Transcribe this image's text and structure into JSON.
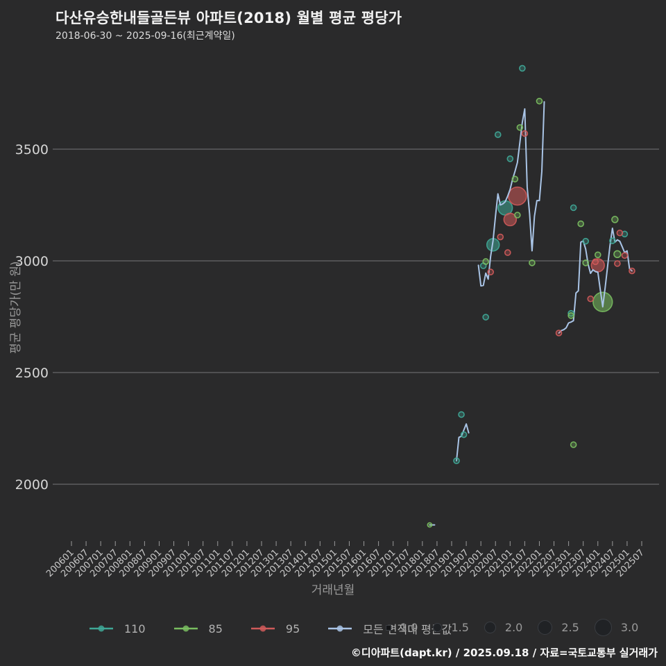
{
  "header": {
    "title": "다산유승한내들골든뷰 아파트(2018) 월별 평균 평당가",
    "subtitle": "2018-06-30 ~ 2025-09-16(최근계약일)"
  },
  "footer": {
    "attribution": "©디아파트(dapt.kr) / 2025.09.18 / 자료=국토교통부 실거래가"
  },
  "chart_data": {
    "type": "scatter+line",
    "xlabel": "거래년월",
    "ylabel": "평균 평당가(만 원)",
    "grid": true,
    "legend_position": "bottom",
    "y_ticks": [
      3500,
      3000,
      2500,
      2000
    ],
    "ylim": [
      1700,
      3950
    ],
    "x_ticks": [
      "200601",
      "200607",
      "200701",
      "200707",
      "200801",
      "200807",
      "200901",
      "200907",
      "201001",
      "201007",
      "201101",
      "201107",
      "201201",
      "201207",
      "201301",
      "201307",
      "201401",
      "201407",
      "201501",
      "201507",
      "201601",
      "201607",
      "201701",
      "201707",
      "201801",
      "201807",
      "201901",
      "201907",
      "202001",
      "202007",
      "202101",
      "202107",
      "202201",
      "202207",
      "202301",
      "202307",
      "202401",
      "202407",
      "202501",
      "202507"
    ],
    "avg_line": {
      "label": "모든 면적대 평균값",
      "color": "#a9c4e6",
      "segments": [
        [
          [
            "201804",
            1818
          ],
          [
            "201806",
            1818
          ]
        ],
        [
          [
            "201903",
            2105
          ],
          [
            "201904",
            2210
          ],
          [
            "201905",
            2215
          ],
          [
            "201907",
            2270
          ],
          [
            "201908",
            2230
          ]
        ],
        [
          [
            "201912",
            2980
          ],
          [
            "202001",
            2888
          ],
          [
            "202002",
            2890
          ],
          [
            "202003",
            2945
          ],
          [
            "202004",
            2918
          ],
          [
            "202005",
            3020
          ],
          [
            "202006",
            3090
          ],
          [
            "202007",
            3200
          ],
          [
            "202008",
            3300
          ],
          [
            "202009",
            3250
          ],
          [
            "202010",
            3255
          ],
          [
            "202011",
            3265
          ],
          [
            "202012",
            3290
          ],
          [
            "202101",
            3320
          ],
          [
            "202102",
            3365
          ],
          [
            "202103",
            3400
          ],
          [
            "202104",
            3440
          ],
          [
            "202105",
            3530
          ],
          [
            "202106",
            3620
          ],
          [
            "202107",
            3680
          ],
          [
            "202108",
            3330
          ],
          [
            "202109",
            3210
          ],
          [
            "202110",
            3045
          ],
          [
            "202111",
            3200
          ],
          [
            "202112",
            3270
          ],
          [
            "202201",
            3270
          ],
          [
            "202202",
            3400
          ],
          [
            "202203",
            3712
          ]
        ],
        [
          [
            "202209",
            2677
          ],
          [
            "202210",
            2688
          ],
          [
            "202211",
            2692
          ],
          [
            "202212",
            2700
          ],
          [
            "202301",
            2722
          ],
          [
            "202302",
            2726
          ],
          [
            "202303",
            2732
          ],
          [
            "202304",
            2856
          ],
          [
            "202305",
            2866
          ],
          [
            "202306",
            3084
          ],
          [
            "202307",
            3089
          ],
          [
            "202308",
            3053
          ],
          [
            "202309",
            2985
          ],
          [
            "202310",
            2944
          ],
          [
            "202311",
            2960
          ],
          [
            "202312",
            2952
          ],
          [
            "202401",
            2949
          ],
          [
            "202402",
            2870
          ],
          [
            "202403",
            2794
          ],
          [
            "202404",
            2880
          ],
          [
            "202405",
            2975
          ],
          [
            "202406",
            3070
          ],
          [
            "202407",
            3146
          ],
          [
            "202408",
            3084
          ],
          [
            "202409",
            3094
          ],
          [
            "202410",
            3088
          ],
          [
            "202411",
            3063
          ],
          [
            "202412",
            3037
          ],
          [
            "202501",
            3045
          ],
          [
            "202502",
            2965
          ],
          [
            "202503",
            2955
          ]
        ]
      ]
    },
    "scatter_series": [
      {
        "label": "110",
        "color": "#3fa796",
        "points": [
          [
            "201903",
            2105,
            1
          ],
          [
            "201905",
            2312,
            1
          ],
          [
            "201906",
            2222,
            1
          ],
          [
            "202002",
            2978,
            1
          ],
          [
            "202003",
            2748,
            1
          ],
          [
            "202006",
            3072,
            2.1
          ],
          [
            "202008",
            3565,
            1
          ],
          [
            "202011",
            3237,
            2.4
          ],
          [
            "202101",
            3457,
            1
          ],
          [
            "202106",
            3862,
            1
          ],
          [
            "202302",
            2765,
            1
          ],
          [
            "202303",
            3238,
            1
          ],
          [
            "202308",
            3088,
            1
          ],
          [
            "202407",
            3090,
            1
          ],
          [
            "202412",
            3120,
            1
          ]
        ]
      },
      {
        "label": "85",
        "color": "#79bd60",
        "points": [
          [
            "201804",
            1818,
            0.8
          ],
          [
            "202003",
            2997,
            1
          ],
          [
            "202103",
            3366,
            1
          ],
          [
            "202104",
            3205,
            1
          ],
          [
            "202105",
            3597,
            1
          ],
          [
            "202110",
            2991,
            1
          ],
          [
            "202201",
            3715,
            1
          ],
          [
            "202302",
            2755,
            1
          ],
          [
            "202303",
            2177,
            1
          ],
          [
            "202306",
            3166,
            1
          ],
          [
            "202308",
            2991,
            1
          ],
          [
            "202401",
            3027,
            1
          ],
          [
            "202403",
            2816,
            3.2
          ],
          [
            "202408",
            3185,
            1.1
          ],
          [
            "202409",
            3030,
            1.2
          ]
        ]
      },
      {
        "label": "95",
        "color": "#cf5a5a",
        "points": [
          [
            "202005",
            2950,
            1
          ],
          [
            "202009",
            3107,
            1
          ],
          [
            "202012",
            3037,
            1
          ],
          [
            "202101",
            3185,
            2.1
          ],
          [
            "202104",
            3290,
            3
          ],
          [
            "202107",
            3570,
            1
          ],
          [
            "202209",
            2677,
            1
          ],
          [
            "202310",
            2830,
            1
          ],
          [
            "202312",
            2996,
            1
          ],
          [
            "202401",
            2980,
            2.2
          ],
          [
            "202409",
            2988,
            1
          ],
          [
            "202410",
            3125,
            1
          ],
          [
            "202412",
            3024,
            1
          ],
          [
            "202503",
            2955,
            1
          ]
        ]
      }
    ],
    "size_legend": {
      "values": [
        "1.0",
        "1.5",
        "2.0",
        "2.5",
        "3.0"
      ]
    }
  }
}
